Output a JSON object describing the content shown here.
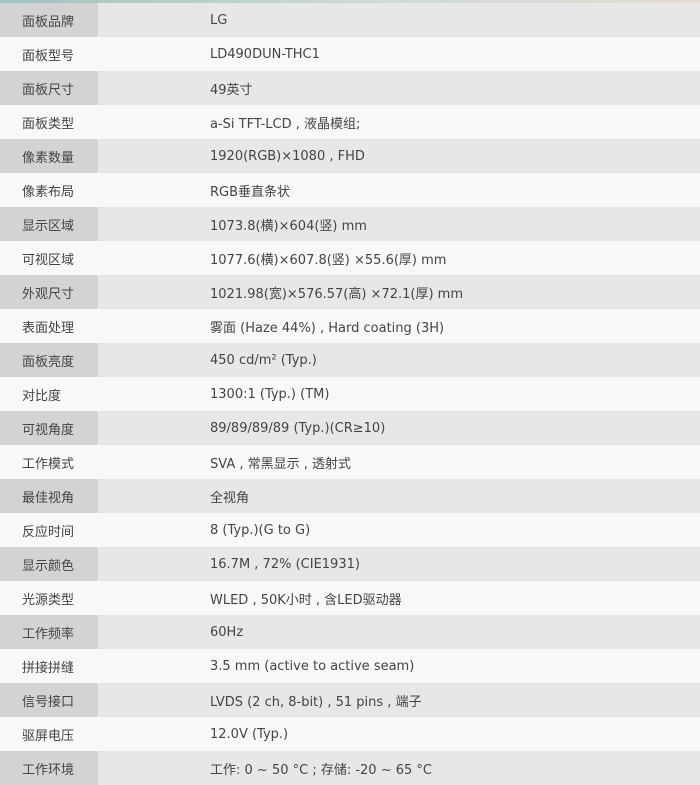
{
  "specs": [
    {
      "label": "面板品牌",
      "value": "LG"
    },
    {
      "label": "面板型号",
      "value": "LD490DUN-THC1"
    },
    {
      "label": "面板尺寸",
      "value": "49英寸"
    },
    {
      "label": "面板类型",
      "value": "a-Si TFT-LCD , 液晶模组;"
    },
    {
      "label": "像素数量",
      "value": "1920(RGB)×1080 , FHD"
    },
    {
      "label": "像素布局",
      "value": "RGB垂直条状"
    },
    {
      "label": "显示区域",
      "value": "1073.8(横)×604(竖) mm"
    },
    {
      "label": "可视区域",
      "value": "1077.6(横)×607.8(竖) ×55.6(厚) mm"
    },
    {
      "label": "外观尺寸",
      "value": "1021.98(宽)×576.57(高) ×72.1(厚) mm"
    },
    {
      "label": "表面处理",
      "value": "雾面 (Haze 44%) , Hard coating (3H)"
    },
    {
      "label": "面板亮度",
      "value": "450 cd/m² (Typ.)"
    },
    {
      "label": "对比度",
      "value": "1300:1 (Typ.) (TM)"
    },
    {
      "label": "可视角度",
      "value": "89/89/89/89 (Typ.)(CR≥10)"
    },
    {
      "label": "工作模式",
      "value": "SVA , 常黑显示 , 透射式"
    },
    {
      "label": "最佳视角",
      "value": "全视角"
    },
    {
      "label": "反应时间",
      "value": "8 (Typ.)(G to G)"
    },
    {
      "label": "显示颜色",
      "value": "16.7M , 72% (CIE1931)"
    },
    {
      "label": "光源类型",
      "value": "WLED , 50K小时 , 含LED驱动器"
    },
    {
      "label": "工作频率",
      "value": "60Hz"
    },
    {
      "label": "拼接拼缝",
      "value": "3.5 mm (active to active seam)"
    },
    {
      "label": "信号接口",
      "value": "LVDS (2 ch, 8-bit) , 51 pins , 端子"
    },
    {
      "label": "驱屏电压",
      "value": "12.0V (Typ.)"
    },
    {
      "label": "工作环境",
      "value": "工作: 0 ~ 50 °C ; 存储: -20 ~ 65 °C"
    }
  ]
}
